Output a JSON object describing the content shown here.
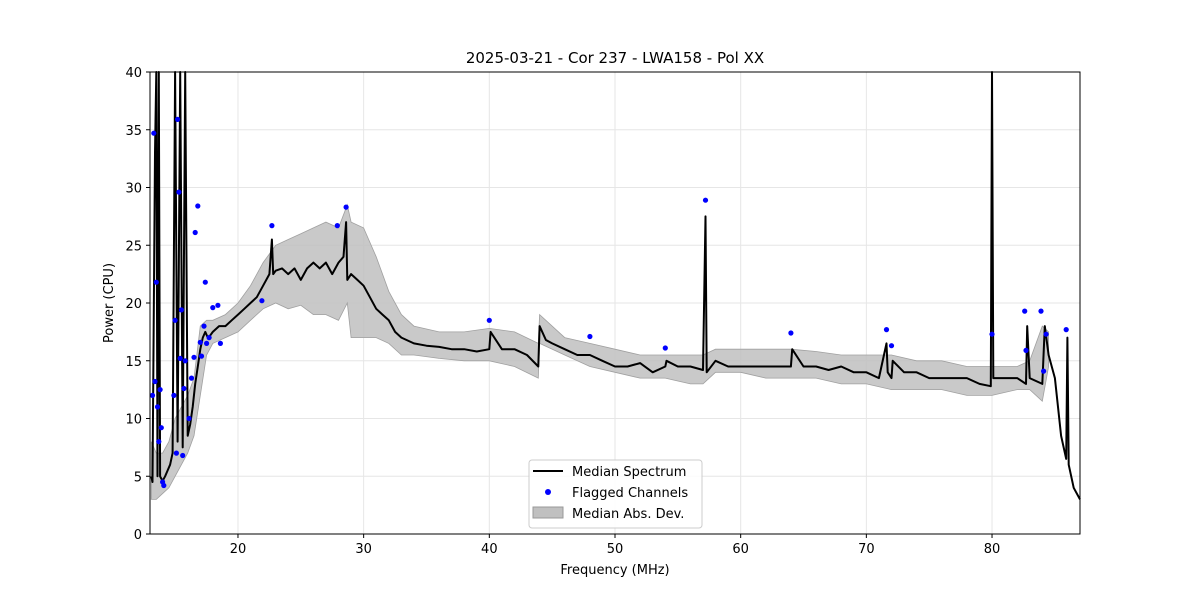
{
  "chart_data": {
    "type": "line",
    "title": "2025-03-21 - Cor 237 - LWA158 - Pol XX",
    "xlabel": "Frequency (MHz)",
    "ylabel": "Power (CPU)",
    "xlim": [
      13,
      87
    ],
    "ylim": [
      0,
      40
    ],
    "xticks": [
      20,
      30,
      40,
      50,
      60,
      70,
      80
    ],
    "yticks": [
      0,
      5,
      10,
      15,
      20,
      25,
      30,
      35,
      40
    ],
    "grid": true,
    "legend_position": "lower-center",
    "colors": {
      "median": "#000000",
      "flagged": "#0000ff",
      "mad": "#c0c0c0"
    },
    "series": [
      {
        "name": "Median Spectrum",
        "kind": "line",
        "x": [
          13.1,
          13.2,
          13.4,
          13.5,
          13.6,
          13.7,
          13.8,
          13.9,
          14.0,
          14.2,
          14.4,
          14.6,
          14.8,
          15.0,
          15.2,
          15.4,
          15.6,
          15.8,
          16.0,
          16.2,
          16.4,
          16.6,
          16.8,
          17.0,
          17.2,
          17.4,
          17.6,
          17.8,
          18.0,
          18.5,
          19.0,
          19.5,
          20.0,
          20.5,
          21.0,
          21.5,
          22.0,
          22.5,
          22.7,
          22.8,
          23.0,
          23.5,
          24.0,
          24.5,
          25.0,
          25.5,
          26.0,
          26.5,
          27.0,
          27.5,
          28.0,
          28.4,
          28.6,
          28.7,
          29.0,
          29.5,
          30.0,
          30.5,
          31.0,
          31.5,
          32.0,
          32.5,
          33.0,
          34.0,
          35.0,
          36.0,
          37.0,
          38.0,
          39.0,
          40.0,
          40.1,
          41.0,
          42.0,
          43.0,
          43.9,
          44.0,
          44.5,
          45.0,
          46.0,
          47.0,
          48.0,
          49.0,
          50.0,
          51.0,
          52.0,
          53.0,
          54.0,
          54.1,
          55.0,
          56.0,
          57.0,
          57.2,
          57.3,
          58.0,
          59.0,
          60.0,
          61.0,
          62.0,
          63.0,
          64.0,
          64.1,
          65.0,
          66.0,
          67.0,
          68.0,
          69.0,
          70.0,
          71.0,
          71.6,
          71.7,
          72.0,
          72.1,
          73.0,
          74.0,
          75.0,
          76.0,
          77.0,
          78.0,
          79.0,
          79.9,
          80.0,
          80.1,
          81.0,
          82.0,
          82.7,
          82.8,
          83.0,
          84.0,
          84.2,
          84.5,
          85.0,
          85.5,
          85.9,
          86.0,
          86.1,
          86.5,
          87.0
        ],
        "values": [
          5.0,
          4.5,
          33.0,
          40.0,
          5.0,
          40.0,
          5.0,
          4.8,
          4.6,
          5.0,
          5.5,
          6.0,
          7.0,
          40.0,
          8.0,
          40.0,
          7.5,
          40.0,
          8.5,
          9.5,
          11.0,
          13.0,
          14.5,
          16.0,
          17.0,
          17.5,
          17.0,
          17.2,
          17.5,
          18.0,
          18.0,
          18.5,
          19.0,
          19.5,
          20.0,
          20.5,
          21.5,
          22.5,
          25.5,
          22.5,
          22.8,
          23.0,
          22.5,
          23.0,
          22.0,
          23.0,
          23.5,
          23.0,
          23.5,
          22.5,
          23.5,
          24.0,
          27.0,
          22.0,
          22.5,
          22.0,
          21.5,
          20.5,
          19.5,
          19.0,
          18.5,
          17.5,
          17.0,
          16.5,
          16.3,
          16.2,
          16.0,
          16.0,
          15.8,
          16.0,
          17.5,
          16.0,
          16.0,
          15.5,
          14.5,
          18.0,
          16.8,
          16.5,
          16.0,
          15.5,
          15.5,
          15.0,
          14.5,
          14.5,
          14.8,
          14.0,
          14.5,
          15.0,
          14.5,
          14.5,
          14.2,
          27.5,
          14.0,
          15.0,
          14.5,
          14.5,
          14.5,
          14.5,
          14.5,
          14.5,
          16.0,
          14.5,
          14.5,
          14.2,
          14.5,
          14.0,
          14.0,
          13.5,
          16.5,
          14.0,
          13.5,
          15.0,
          14.0,
          14.0,
          13.5,
          13.5,
          13.5,
          13.5,
          13.0,
          12.8,
          40.0,
          13.5,
          13.5,
          13.5,
          13.0,
          18.0,
          13.5,
          13.0,
          18.0,
          15.5,
          13.5,
          8.5,
          6.5,
          17.0,
          6.0,
          4.0,
          3.0
        ]
      },
      {
        "name": "Flagged Channels",
        "kind": "scatter",
        "x": [
          13.2,
          13.3,
          13.4,
          13.5,
          13.6,
          13.7,
          13.8,
          13.9,
          14.0,
          14.1,
          14.9,
          15.0,
          15.1,
          15.2,
          15.3,
          15.4,
          15.5,
          15.6,
          15.7,
          15.8,
          16.1,
          16.3,
          16.5,
          16.6,
          16.8,
          17.0,
          17.1,
          17.3,
          17.4,
          17.5,
          17.7,
          18.0,
          18.4,
          18.6,
          21.9,
          22.7,
          27.9,
          28.6,
          40.0,
          48.0,
          54.0,
          57.2,
          64.0,
          71.6,
          72.0,
          80.0,
          82.6,
          82.7,
          83.9,
          84.1,
          84.3,
          85.9
        ],
        "values": [
          12.0,
          34.7,
          13.2,
          21.8,
          11.0,
          8.0,
          12.5,
          9.2,
          4.5,
          4.2,
          12.0,
          18.5,
          7.0,
          35.9,
          29.6,
          15.2,
          19.4,
          6.8,
          12.6,
          15.0,
          10.0,
          13.5,
          15.3,
          26.1,
          28.4,
          16.6,
          15.4,
          18.0,
          21.8,
          16.5,
          17.0,
          19.6,
          19.8,
          16.5,
          20.2,
          26.7,
          26.7,
          28.3,
          18.5,
          17.1,
          16.1,
          28.9,
          17.4,
          17.7,
          16.3,
          17.3,
          19.3,
          15.9,
          19.3,
          14.1,
          17.3,
          17.7
        ]
      },
      {
        "name": "Median Abs. Dev.",
        "kind": "band",
        "x": [
          13.1,
          13.5,
          14.0,
          14.5,
          15.0,
          15.5,
          16.0,
          16.5,
          17.0,
          17.5,
          18.0,
          19.0,
          20.0,
          21.0,
          22.0,
          23.0,
          24.0,
          25.0,
          26.0,
          27.0,
          28.0,
          28.7,
          29.0,
          30.0,
          31.0,
          32.0,
          33.0,
          34.0,
          36.0,
          38.0,
          40.0,
          42.0,
          43.9,
          44.0,
          46.0,
          48.0,
          50.0,
          52.0,
          54.0,
          56.0,
          57.0,
          58.0,
          60.0,
          62.0,
          64.0,
          66.0,
          68.0,
          70.0,
          72.0,
          74.0,
          76.0,
          78.0,
          80.0,
          82.0,
          83.0,
          84.0,
          84.5
        ],
        "lower": [
          3.0,
          3.0,
          3.5,
          4.0,
          5.0,
          6.0,
          7.0,
          8.5,
          12.0,
          15.5,
          16.5,
          17.0,
          17.5,
          18.5,
          19.5,
          20.0,
          19.5,
          19.8,
          19.0,
          19.0,
          18.5,
          20.0,
          17.0,
          17.0,
          17.0,
          16.5,
          15.5,
          15.5,
          15.2,
          15.0,
          15.0,
          14.5,
          13.5,
          16.5,
          15.5,
          14.5,
          14.0,
          13.5,
          13.5,
          13.0,
          13.0,
          14.0,
          14.0,
          13.5,
          13.5,
          13.5,
          13.0,
          13.0,
          12.5,
          12.5,
          12.5,
          12.0,
          12.0,
          12.5,
          12.5,
          11.5,
          14.5
        ],
        "upper": [
          8.0,
          7.0,
          7.0,
          8.0,
          10.0,
          11.0,
          12.0,
          13.5,
          18.0,
          18.5,
          18.5,
          19.0,
          20.0,
          21.5,
          23.5,
          25.0,
          25.5,
          26.0,
          26.5,
          27.0,
          26.5,
          28.5,
          27.0,
          26.5,
          24.0,
          21.0,
          19.0,
          18.0,
          17.5,
          17.5,
          17.8,
          17.5,
          16.5,
          19.0,
          17.0,
          16.5,
          16.0,
          15.5,
          15.5,
          15.5,
          15.5,
          16.0,
          16.0,
          16.0,
          16.0,
          15.8,
          15.5,
          15.5,
          15.5,
          15.0,
          15.0,
          14.5,
          14.5,
          14.5,
          15.0,
          18.0,
          17.5
        ]
      }
    ]
  }
}
